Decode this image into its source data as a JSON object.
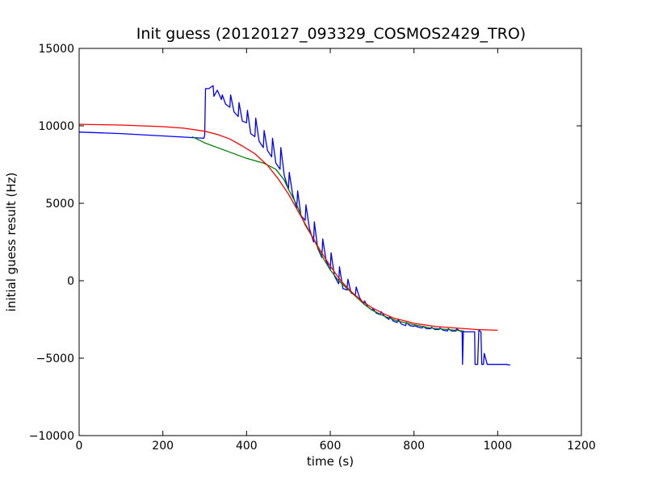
{
  "chart_data": {
    "type": "line",
    "title": "Init guess (20120127_093329_COSMOS2429_TRO)",
    "xlabel": "time (s)",
    "ylabel": "initial guess result (Hz)",
    "xlim": [
      0,
      1200
    ],
    "ylim": [
      -10000,
      15000
    ],
    "xticks": [
      0,
      200,
      400,
      600,
      800,
      1000,
      1200
    ],
    "yticks": [
      -10000,
      -5000,
      0,
      5000,
      10000,
      15000
    ],
    "xtick_labels": [
      "0",
      "200",
      "400",
      "600",
      "800",
      "1000",
      "1200"
    ],
    "ytick_labels": [
      "−10000",
      "−5000",
      "0",
      "5000",
      "10000",
      "15000"
    ],
    "grid": false,
    "legend": "none",
    "series": [
      {
        "color": "#0000ff",
        "x": [
          0,
          100,
          200,
          298,
          300,
          302,
          310,
          320,
          322,
          330,
          340,
          342,
          350,
          360,
          362,
          370,
          380,
          382,
          390,
          400,
          402,
          410,
          420,
          422,
          430,
          440,
          442,
          450,
          460,
          462,
          470,
          480,
          482,
          490,
          500,
          502,
          510,
          520,
          522,
          530,
          540,
          542,
          550,
          560,
          562,
          570,
          580,
          582,
          590,
          600,
          602,
          610,
          620,
          622,
          630,
          640,
          642,
          650,
          660,
          662,
          670,
          680,
          682,
          690,
          700,
          702,
          710,
          720,
          722,
          730,
          740,
          742,
          750,
          760,
          762,
          770,
          780,
          782,
          790,
          800,
          802,
          810,
          820,
          822,
          830,
          840,
          842,
          850,
          860,
          862,
          870,
          880,
          882,
          890,
          900,
          902,
          910,
          915,
          916,
          918,
          920,
          930,
          940,
          945,
          946,
          948,
          952,
          955,
          960,
          962,
          966,
          968,
          975,
          980,
          990,
          1000,
          1010,
          1020,
          1030
        ],
        "y": [
          9600,
          9500,
          9350,
          9200,
          9400,
          12400,
          12400,
          12600,
          11900,
          12300,
          11700,
          12000,
          11400,
          11200,
          12000,
          10900,
          10600,
          11500,
          10300,
          10200,
          11000,
          9500,
          9300,
          10500,
          9000,
          8600,
          9700,
          8400,
          8000,
          9200,
          7600,
          7200,
          8600,
          6800,
          5900,
          7000,
          5600,
          4700,
          5800,
          4200,
          3900,
          4900,
          3400,
          2500,
          3800,
          2100,
          1500,
          2700,
          1300,
          700,
          1800,
          300,
          -200,
          900,
          -500,
          -600,
          100,
          -800,
          -900,
          -400,
          -1100,
          -1500,
          -1300,
          -1700,
          -1900,
          -1800,
          -2100,
          -2200,
          -2000,
          -2300,
          -2500,
          -2300,
          -2600,
          -2700,
          -2500,
          -2800,
          -2900,
          -2700,
          -2900,
          -2950,
          -2900,
          -3000,
          -3050,
          -2950,
          -3100,
          -3100,
          -3000,
          -3150,
          -3150,
          -3050,
          -3200,
          -3250,
          -3100,
          -3250,
          -3250,
          -3100,
          -3250,
          -3300,
          -5400,
          -3300,
          -3300,
          -3300,
          -3300,
          -3300,
          -5400,
          -5400,
          -5400,
          -3200,
          -3300,
          -5400,
          -5400,
          -4700,
          -5400,
          -5400,
          -5400,
          -5400,
          -5400,
          -5400,
          -5450
        ]
      },
      {
        "color": "#008000",
        "x": [
          270,
          300,
          350,
          400,
          440,
          470,
          490,
          500,
          520,
          540,
          560,
          580,
          600,
          620,
          640,
          660,
          680,
          700,
          730,
          760,
          800,
          840,
          880,
          920
        ],
        "y": [
          9300,
          8900,
          8400,
          7900,
          7600,
          7200,
          6500,
          5900,
          4900,
          3600,
          2700,
          1600,
          700,
          0,
          -500,
          -1000,
          -1500,
          -1900,
          -2300,
          -2600,
          -2850,
          -3050,
          -3150,
          -3250
        ]
      },
      {
        "color": "#ff0000",
        "x": [
          0,
          100,
          200,
          250,
          300,
          330,
          360,
          390,
          420,
          450,
          475,
          500,
          525,
          550,
          575,
          600,
          625,
          650,
          675,
          700,
          725,
          750,
          800,
          850,
          900,
          950,
          1000
        ],
        "y": [
          10100,
          10050,
          9950,
          9850,
          9650,
          9450,
          9150,
          8700,
          8200,
          7450,
          6600,
          5600,
          4400,
          3200,
          2000,
          950,
          0,
          -700,
          -1300,
          -1750,
          -2100,
          -2400,
          -2750,
          -2950,
          -3050,
          -3150,
          -3200
        ]
      }
    ]
  }
}
